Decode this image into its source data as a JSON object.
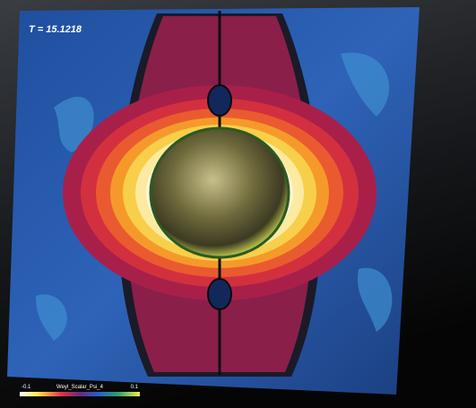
{
  "time_label": "T = 15.1218",
  "colorbar": {
    "min_label": "-0.1",
    "title": "Weyl_Scalar_Psi_4",
    "max_label": "0.1"
  }
}
